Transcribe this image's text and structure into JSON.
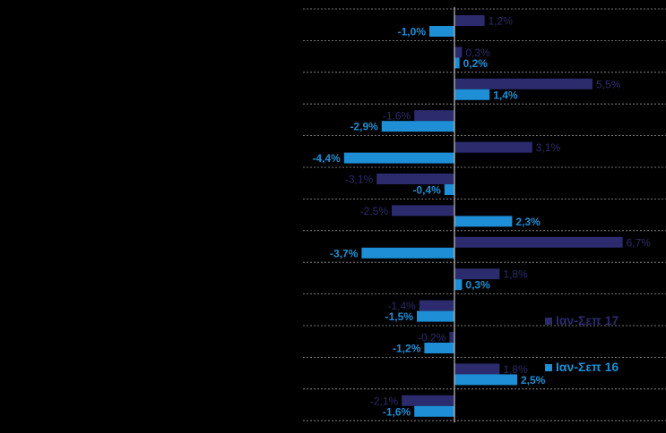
{
  "chart_data": {
    "type": "bar",
    "orientation": "horizontal",
    "title": "",
    "xlabel": "",
    "ylabel": "",
    "categories": [
      "",
      "",
      "",
      "",
      "",
      "",
      "",
      "",
      "",
      "",
      "",
      "",
      ""
    ],
    "series": [
      {
        "name": "Ιαν-Σεπ 17",
        "color": "#2b2b6e",
        "values": [
          1.2,
          0.3,
          5.5,
          -1.6,
          3.1,
          -3.1,
          -2.5,
          6.7,
          1.8,
          -1.4,
          -0.2,
          1.8,
          -2.1
        ],
        "labels": [
          "1,2%",
          "0,3%",
          "5,5%",
          "-1,6%",
          "3,1%",
          "-3,1%",
          "-2,5%",
          "6,7%",
          "1,8%",
          "-1,4%",
          "-0,2%",
          "1,8%",
          "-2,1%"
        ]
      },
      {
        "name": "Ιαν-Σεπ 16",
        "color": "#1e8fd6",
        "values": [
          -1.0,
          0.2,
          1.4,
          -2.9,
          -4.4,
          -0.4,
          2.3,
          -3.7,
          0.3,
          -1.5,
          -1.2,
          2.5,
          -1.6
        ],
        "labels": [
          "-1,0%",
          "0,2%",
          "1,4%",
          "-2,9%",
          "-4,4%",
          "-0,4%",
          "2,3%",
          "-3,7%",
          "0,3%",
          "-1,5%",
          "-1,2%",
          "2,5%",
          "-1,6%"
        ]
      }
    ],
    "grid": true,
    "legend": "right"
  },
  "legend": {
    "items": [
      {
        "label": "Ιαν-Σεπ 17",
        "color": "#2b2b6e"
      },
      {
        "label": "Ιαν-Σεπ 16",
        "color": "#1e8fd6"
      }
    ]
  }
}
